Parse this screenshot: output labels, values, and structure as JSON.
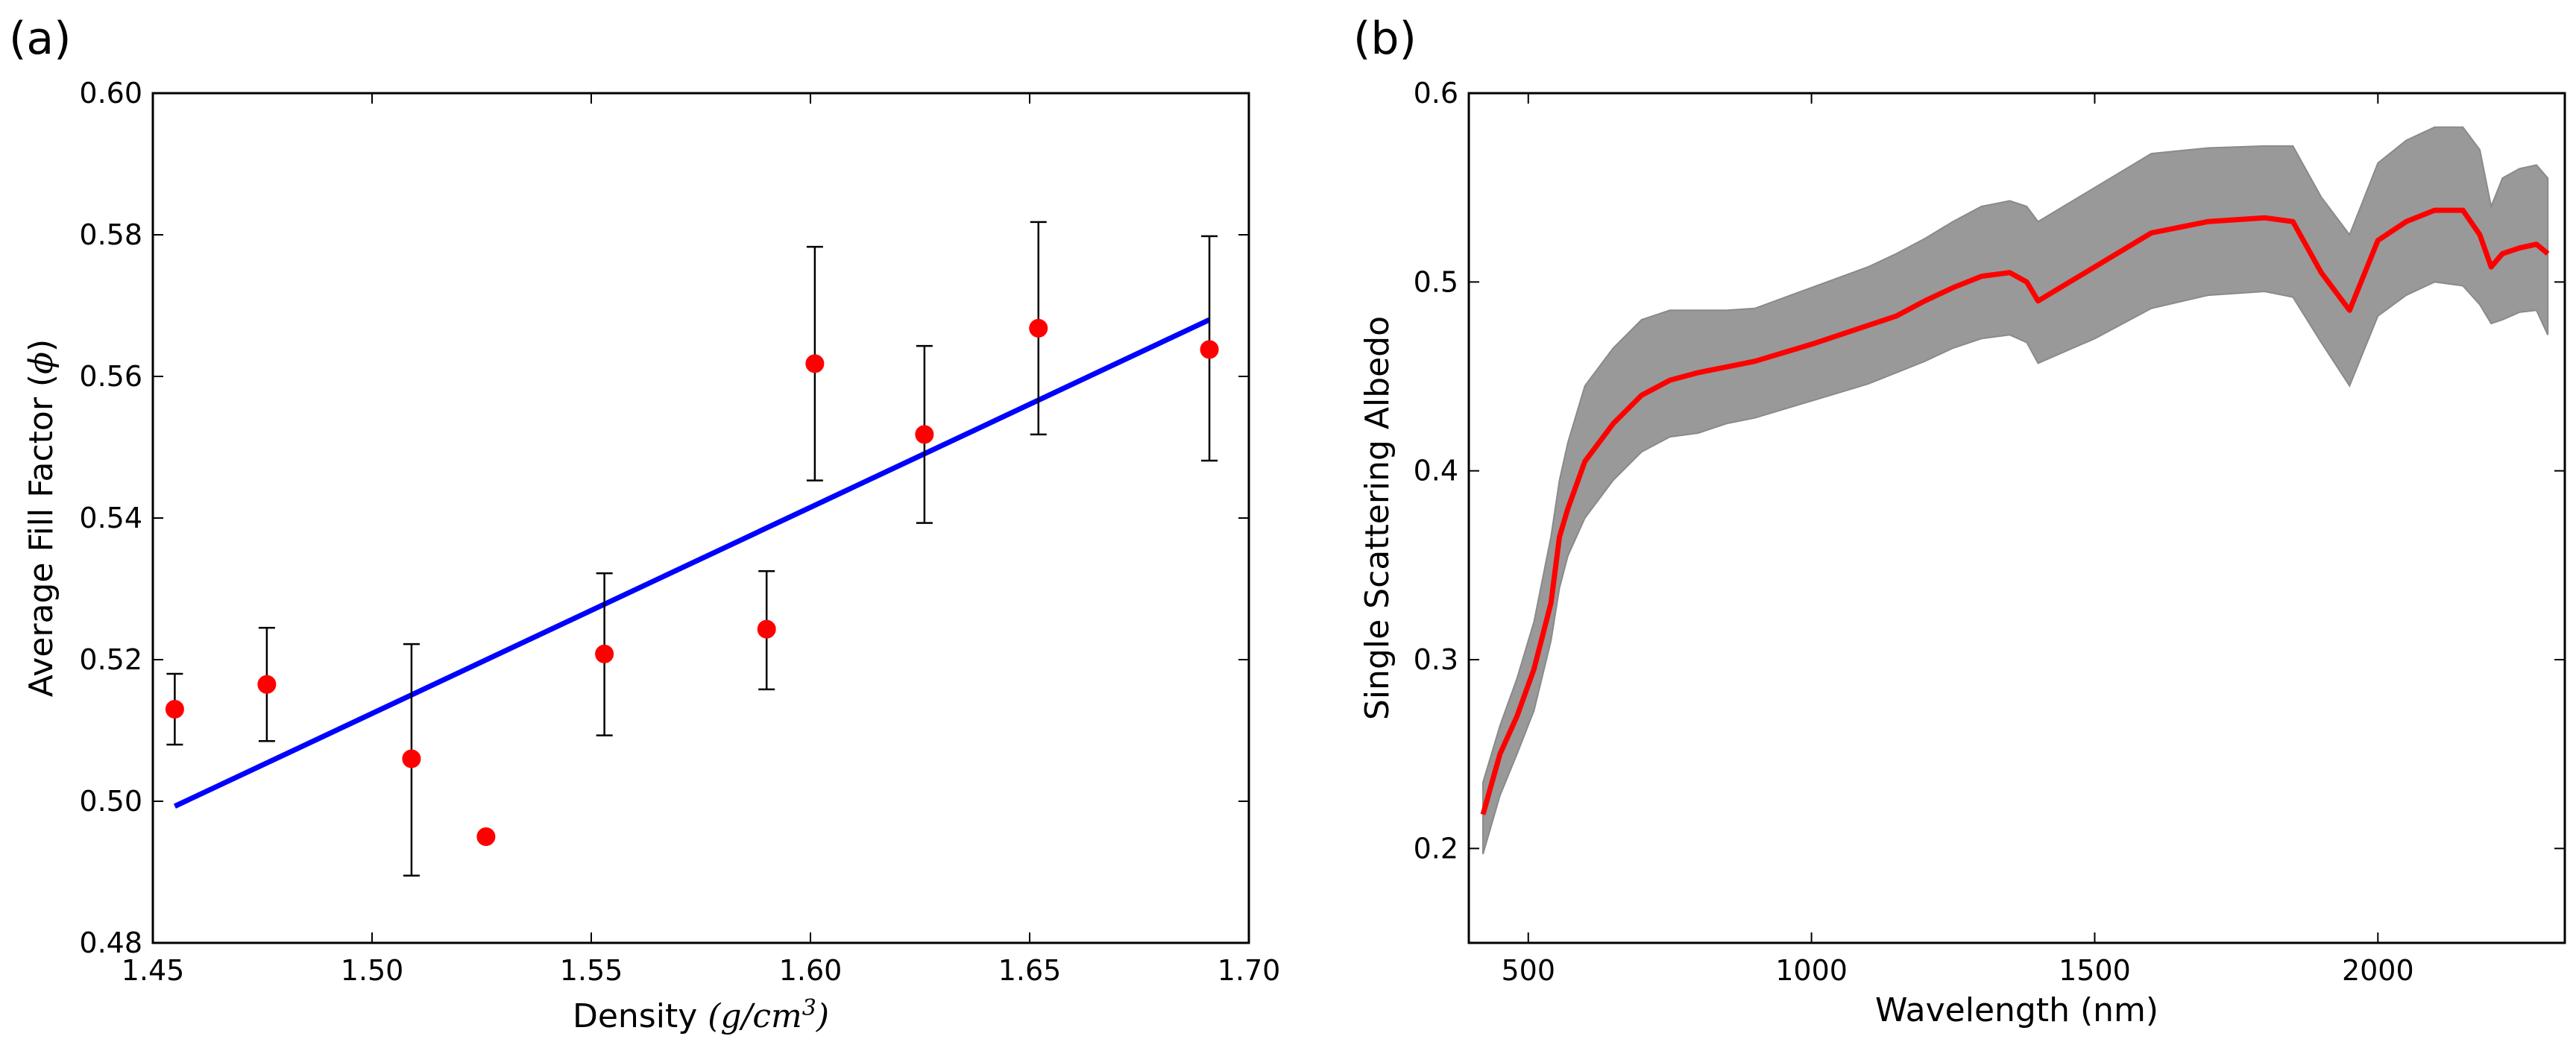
{
  "chart_data": [
    {
      "panel_label": "(a)",
      "type": "scatter",
      "title": "",
      "xlabel": "Density",
      "xlabel_math": "(g/cm",
      "xlabel_math_sup": "3",
      "xlabel_math_close": ")",
      "ylabel": "Average Fill Factor (",
      "ylabel_math": "ϕ",
      "ylabel_close": ")",
      "xlim": [
        1.45,
        1.7
      ],
      "ylim": [
        0.48,
        0.6
      ],
      "xticks": [
        1.45,
        1.5,
        1.55,
        1.6,
        1.65,
        1.7
      ],
      "xtick_labels": [
        "1.45",
        "1.50",
        "1.55",
        "1.60",
        "1.65",
        "1.70"
      ],
      "yticks": [
        0.48,
        0.5,
        0.52,
        0.54,
        0.56,
        0.58,
        0.6
      ],
      "ytick_labels": [
        "0.48",
        "0.50",
        "0.52",
        "0.54",
        "0.56",
        "0.58",
        "0.60"
      ],
      "grid": false,
      "series": [
        {
          "name": "measurements",
          "color": "#ff0000",
          "points": [
            {
              "x": 1.455,
              "y": 0.513,
              "err_low": 0.508,
              "err_high": 0.518
            },
            {
              "x": 1.476,
              "y": 0.5165,
              "err_low": 0.5085,
              "err_high": 0.5245
            },
            {
              "x": 1.509,
              "y": 0.506,
              "err_low": 0.4895,
              "err_high": 0.5222
            },
            {
              "x": 1.526,
              "y": 0.495,
              "err_low": null,
              "err_high": null
            },
            {
              "x": 1.553,
              "y": 0.5208,
              "err_low": 0.5093,
              "err_high": 0.5322
            },
            {
              "x": 1.59,
              "y": 0.5243,
              "err_low": 0.5158,
              "err_high": 0.5325
            },
            {
              "x": 1.601,
              "y": 0.5618,
              "err_low": 0.5453,
              "err_high": 0.5783
            },
            {
              "x": 1.626,
              "y": 0.5518,
              "err_low": 0.5393,
              "err_high": 0.5643
            },
            {
              "x": 1.652,
              "y": 0.5668,
              "err_low": 0.5518,
              "err_high": 0.5818
            },
            {
              "x": 1.691,
              "y": 0.5638,
              "err_low": 0.5481,
              "err_high": 0.5798
            }
          ]
        },
        {
          "name": "linear fit",
          "type": "line",
          "color": "#0000ff",
          "x": [
            1.455,
            1.691
          ],
          "y": [
            0.4993,
            0.568
          ]
        }
      ]
    },
    {
      "panel_label": "(b)",
      "type": "line",
      "title": "",
      "xlabel": "Wavelength (nm)",
      "ylabel": "Single Scattering Albedo",
      "xlim": [
        395,
        2330
      ],
      "ylim": [
        0.15,
        0.6
      ],
      "xticks": [
        500,
        1000,
        1500,
        2000
      ],
      "xtick_labels": [
        "500",
        "1000",
        "1500",
        "2000"
      ],
      "yticks": [
        0.2,
        0.3,
        0.4,
        0.5,
        0.6
      ],
      "ytick_labels": [
        "0.2",
        "0.3",
        "0.4",
        "0.5",
        "0.6"
      ],
      "grid": false,
      "series": [
        {
          "name": "mean albedo",
          "color": "#ff0000",
          "x": [
            420,
            450,
            480,
            510,
            540,
            555,
            570,
            600,
            650,
            700,
            750,
            800,
            850,
            900,
            1000,
            1100,
            1150,
            1200,
            1250,
            1300,
            1350,
            1380,
            1400,
            1500,
            1600,
            1700,
            1800,
            1850,
            1900,
            1950,
            2000,
            2050,
            2100,
            2150,
            2180,
            2200,
            2220,
            2250,
            2280,
            2300
          ],
          "y": [
            0.218,
            0.25,
            0.27,
            0.295,
            0.33,
            0.365,
            0.38,
            0.405,
            0.425,
            0.44,
            0.448,
            0.452,
            0.455,
            0.458,
            0.467,
            0.477,
            0.482,
            0.49,
            0.497,
            0.503,
            0.505,
            0.5,
            0.49,
            0.508,
            0.526,
            0.532,
            0.534,
            0.532,
            0.505,
            0.485,
            0.522,
            0.532,
            0.538,
            0.538,
            0.525,
            0.508,
            0.515,
            0.518,
            0.52,
            0.515
          ]
        },
        {
          "name": "uncertainty band",
          "color": "#999999",
          "x": [
            420,
            450,
            480,
            510,
            540,
            555,
            570,
            600,
            650,
            700,
            750,
            800,
            850,
            900,
            1000,
            1100,
            1150,
            1200,
            1250,
            1300,
            1350,
            1380,
            1400,
            1500,
            1600,
            1700,
            1800,
            1850,
            1900,
            1950,
            2000,
            2050,
            2100,
            2150,
            2180,
            2200,
            2220,
            2250,
            2280,
            2300
          ],
          "upper": [
            0.235,
            0.265,
            0.29,
            0.32,
            0.365,
            0.395,
            0.415,
            0.445,
            0.465,
            0.48,
            0.485,
            0.485,
            0.485,
            0.486,
            0.497,
            0.508,
            0.515,
            0.523,
            0.532,
            0.54,
            0.543,
            0.54,
            0.532,
            0.55,
            0.568,
            0.571,
            0.572,
            0.572,
            0.545,
            0.525,
            0.563,
            0.575,
            0.582,
            0.582,
            0.57,
            0.54,
            0.555,
            0.56,
            0.562,
            0.555
          ],
          "lower": [
            0.197,
            0.228,
            0.25,
            0.273,
            0.31,
            0.338,
            0.355,
            0.375,
            0.395,
            0.41,
            0.418,
            0.42,
            0.425,
            0.428,
            0.437,
            0.446,
            0.452,
            0.458,
            0.465,
            0.47,
            0.472,
            0.468,
            0.457,
            0.47,
            0.486,
            0.493,
            0.495,
            0.492,
            0.468,
            0.445,
            0.482,
            0.493,
            0.5,
            0.498,
            0.488,
            0.478,
            0.48,
            0.484,
            0.485,
            0.472
          ]
        }
      ]
    }
  ]
}
